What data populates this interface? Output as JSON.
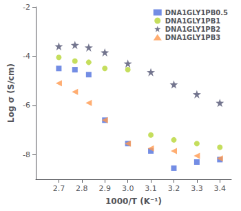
{
  "chart_data": {
    "type": "scatter",
    "x_label": "1000/T (K⁻¹)",
    "y_label": "Log σ (S/cm)",
    "series": [
      {
        "name": "DNA1GLY1PB0.5",
        "marker": "square",
        "x": [
          2.7,
          2.77,
          2.83,
          2.9,
          3.0,
          3.1,
          3.2,
          3.3,
          3.4
        ],
        "values": [
          -4.5,
          -4.55,
          -4.75,
          -6.6,
          -7.55,
          -7.85,
          -8.55,
          -8.3,
          -8.2
        ]
      },
      {
        "name": "DNA1GLY1PB1",
        "marker": "circle",
        "x": [
          2.7,
          2.77,
          2.83,
          2.9,
          3.0,
          3.1,
          3.2,
          3.3,
          3.4
        ],
        "values": [
          -4.05,
          -4.2,
          -4.25,
          -4.5,
          -4.55,
          -7.2,
          -7.4,
          -7.55,
          -7.7
        ]
      },
      {
        "name": "DNA1GLY1PB2",
        "marker": "star",
        "x": [
          2.7,
          2.77,
          2.83,
          2.9,
          3.0,
          3.1,
          3.2,
          3.3,
          3.4
        ],
        "values": [
          -3.6,
          -3.55,
          -3.65,
          -3.85,
          -4.3,
          -4.65,
          -5.15,
          -5.55,
          -5.9
        ]
      },
      {
        "name": "DNA1GLY1PB3",
        "marker": "triangle_left",
        "x": [
          2.7,
          2.77,
          2.83,
          2.9,
          3.0,
          3.1,
          3.2,
          3.3,
          3.4
        ],
        "values": [
          -5.1,
          -5.45,
          -5.9,
          -6.6,
          -7.55,
          -7.75,
          -7.85,
          -8.05,
          -8.15
        ]
      }
    ],
    "xlim": [
      2.6,
      3.45
    ],
    "xticks": [
      2.7,
      2.8,
      2.9,
      3.0,
      3.1,
      3.2,
      3.3,
      3.4
    ],
    "ylim": [
      -9.0,
      -2.0
    ],
    "yticks": [
      -8,
      -6,
      -4,
      -2
    ],
    "grid": false,
    "legend": "upper right"
  }
}
